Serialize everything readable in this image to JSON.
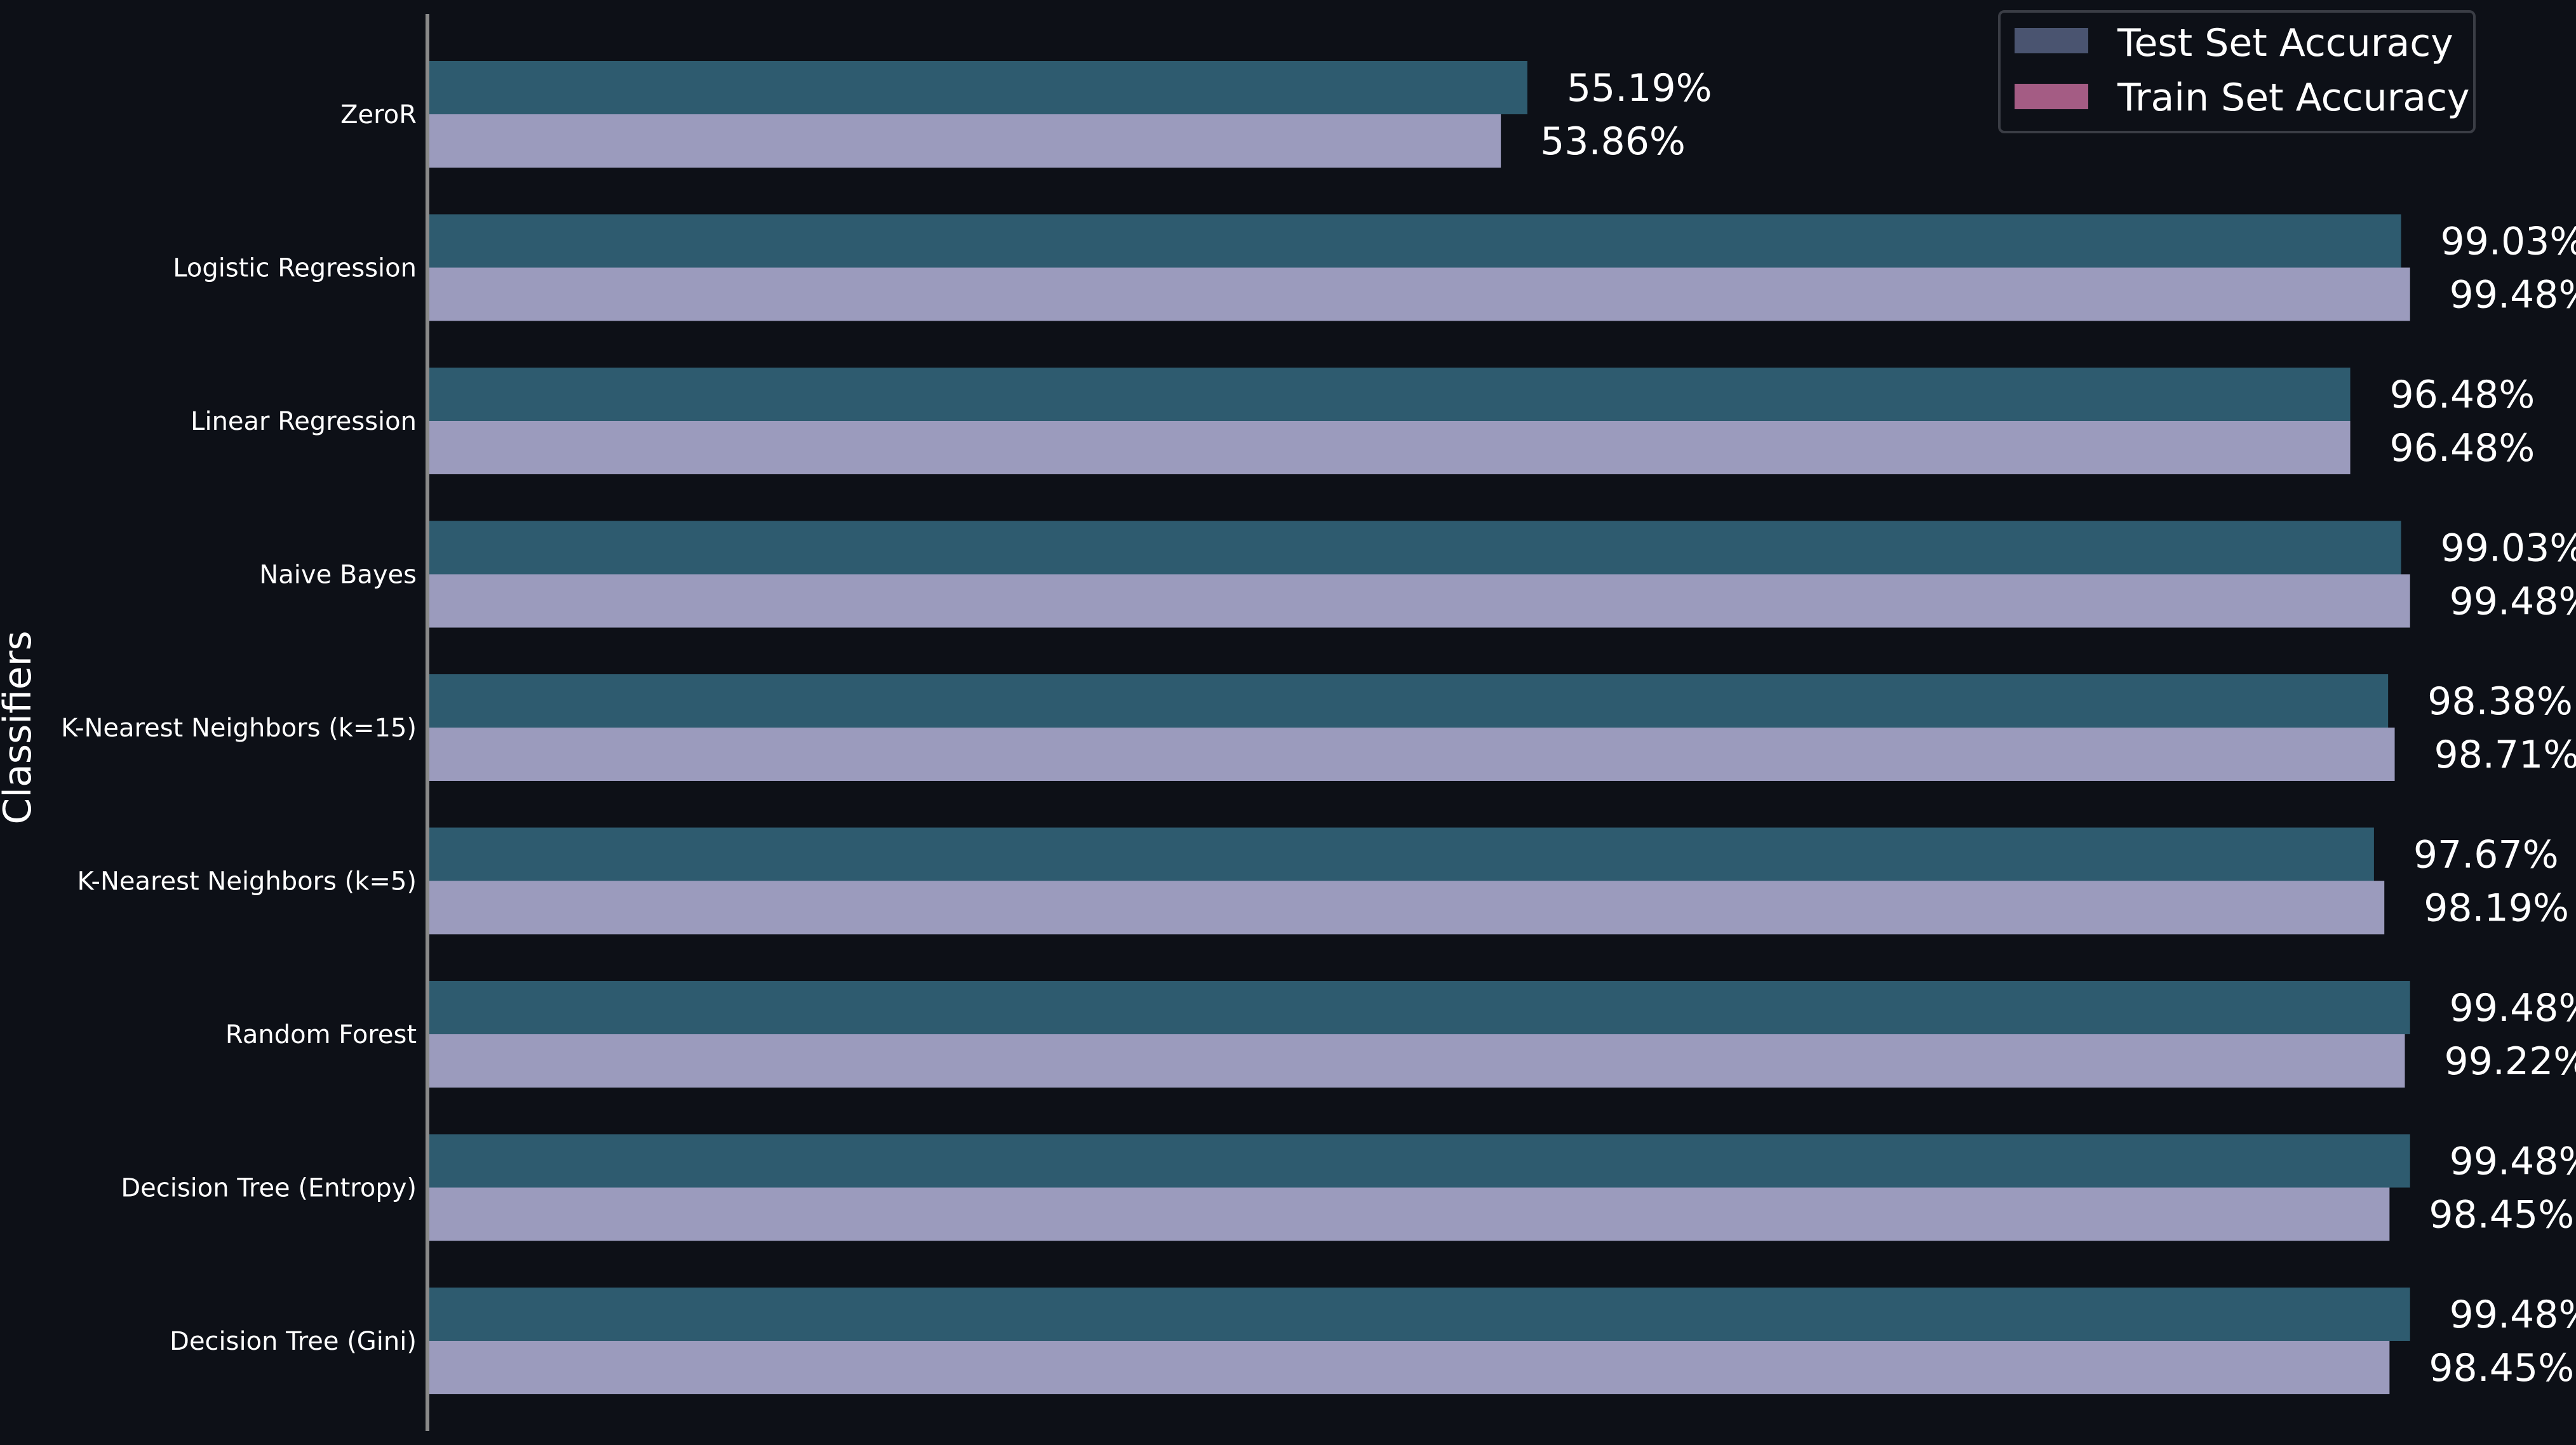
{
  "chart_data": {
    "type": "bar",
    "orientation": "horizontal",
    "title": "",
    "xlabel": "",
    "ylabel": "Classifiers",
    "xlim": [
      0,
      100
    ],
    "grid": false,
    "legend_position": "top-right",
    "categories": [
      "ZeroR",
      "Logistic Regression",
      "Linear Regression",
      "Naive Bayes",
      "K-Nearest Neighbors (k=15)",
      "K-Nearest Neighbors (k=5)",
      "Random Forest",
      "Decision Tree (Entropy)",
      "Decision Tree (Gini)"
    ],
    "series": [
      {
        "name": "Test Set Accuracy",
        "bar_color": "#2e5b6f",
        "legend_color": "#4a5470",
        "values": [
          55.19,
          99.03,
          96.48,
          99.03,
          98.38,
          97.67,
          99.48,
          99.48,
          99.48
        ],
        "labels": [
          "55.19%",
          "99.03%",
          "96.48%",
          "99.03%",
          "98.38%",
          "97.67%",
          "99.48%",
          "99.48%",
          "99.48%"
        ]
      },
      {
        "name": "Train Set Accuracy",
        "bar_color": "#9b9bbd",
        "legend_color": "#a45c84",
        "values": [
          53.86,
          99.48,
          96.48,
          99.48,
          98.71,
          98.19,
          99.22,
          98.45,
          98.45
        ],
        "labels": [
          "53.86%",
          "99.48%",
          "96.48%",
          "99.48%",
          "98.71%",
          "98.19%",
          "99.22%",
          "98.45%",
          "98.45%"
        ]
      }
    ]
  },
  "colors": {
    "background": "#0d1017",
    "text": "#ffffff",
    "axis": "#8a8a8a",
    "legend_background": "#0d1017",
    "legend_border": "#3a3d45"
  }
}
